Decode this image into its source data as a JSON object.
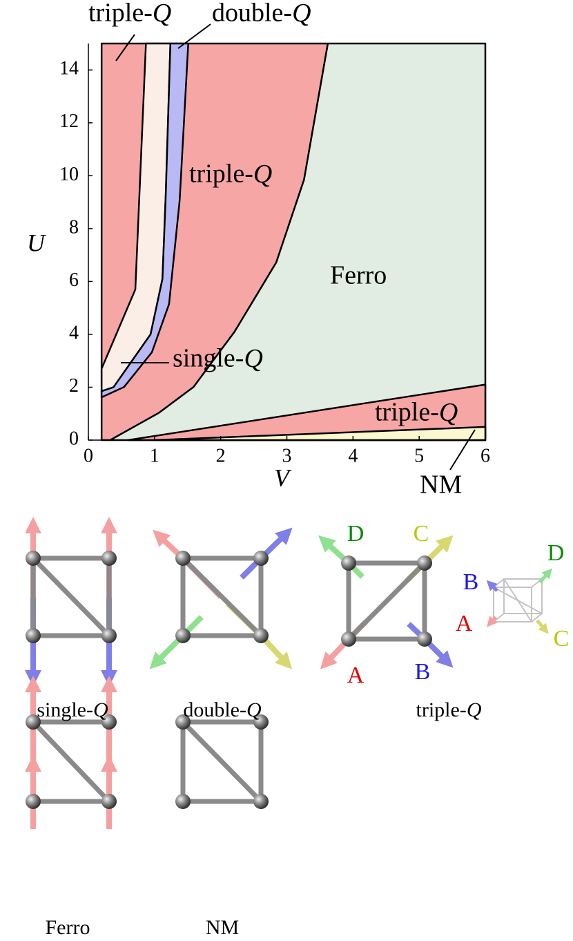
{
  "chart_data": {
    "type": "phase-diagram",
    "x_label": "V",
    "y_label": "U",
    "xlim": [
      0,
      6
    ],
    "ylim": [
      0,
      15
    ],
    "xticks": [
      0,
      1,
      2,
      3,
      4,
      5,
      6
    ],
    "yticks": [
      0,
      2,
      4,
      6,
      8,
      10,
      12,
      14
    ],
    "regions": [
      {
        "color": "#f7a6a6",
        "x": [
          0.2,
          0.33,
          1.06,
          1.59,
          2.21,
          2.84,
          3.26,
          3.62,
          0.2
        ],
        "y": [
          0,
          0,
          1.02,
          2.01,
          4.1,
          6.72,
          9.85,
          15,
          15
        ]
      },
      {
        "color": "#faeee6",
        "x": [
          0.2,
          0.71,
          0.87,
          1.24,
          1.17,
          1.12,
          0.94,
          0.38,
          0.2
        ],
        "y": [
          2.7,
          5.7,
          15,
          15,
          9.3,
          6.1,
          4.0,
          2.0,
          1.85
        ]
      },
      {
        "color": "#b9b9f5",
        "x": [
          0.2,
          0.38,
          0.94,
          1.12,
          1.17,
          1.24,
          1.51,
          1.38,
          1.22,
          0.96,
          0.54,
          0.2
        ],
        "y": [
          1.85,
          2.0,
          4.0,
          6.1,
          9.3,
          15,
          15,
          9.07,
          5.15,
          3.32,
          2.01,
          1.62
        ]
      },
      {
        "color": "#e1ede3",
        "x": [
          0.33,
          1.06,
          1.59,
          2.21,
          2.84,
          3.26,
          3.62,
          6,
          6
        ],
        "y": [
          0,
          1.02,
          2.01,
          4.1,
          6.72,
          9.85,
          15,
          15,
          0
        ]
      },
      {
        "color": "#f7a6a6",
        "x": [
          0.6,
          6,
          6
        ],
        "y": [
          0,
          2.1,
          0
        ]
      },
      {
        "color": "#fbf8cf",
        "x": [
          1.0,
          6,
          6
        ],
        "y": [
          0,
          0.5,
          0
        ]
      }
    ],
    "annotations": [
      "triple-Q",
      "double-Q",
      "triple-Q",
      "Ferro",
      "single-Q",
      "triple-Q",
      "NM"
    ]
  },
  "configurations": {
    "labels": [
      "single-Q",
      "double-Q",
      "triple-Q",
      "Ferro",
      "NM"
    ],
    "site_labels": [
      "D",
      "C",
      "A",
      "B",
      "D",
      "B",
      "A",
      "C"
    ]
  }
}
